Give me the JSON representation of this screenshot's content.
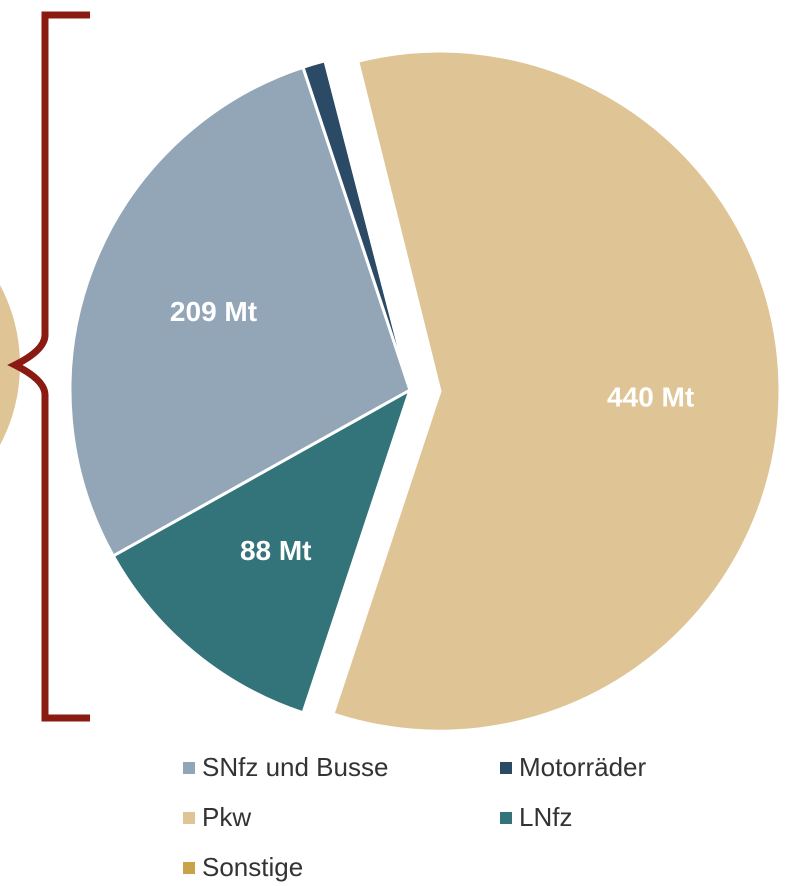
{
  "chart_data": {
    "type": "pie",
    "categories": [
      "Pkw",
      "LNfz",
      "SNfz und Busse",
      "Motorräder",
      "Sonstige"
    ],
    "values": [
      440,
      88,
      209,
      8,
      1
    ],
    "value_labels": [
      "440 Mt",
      "88 Mt",
      "209 Mt",
      null,
      null
    ],
    "colors": [
      "#dfc496",
      "#33737a",
      "#92a6b8",
      "#2a4a66",
      "#c9a24a"
    ],
    "legend": "bottom"
  }
}
